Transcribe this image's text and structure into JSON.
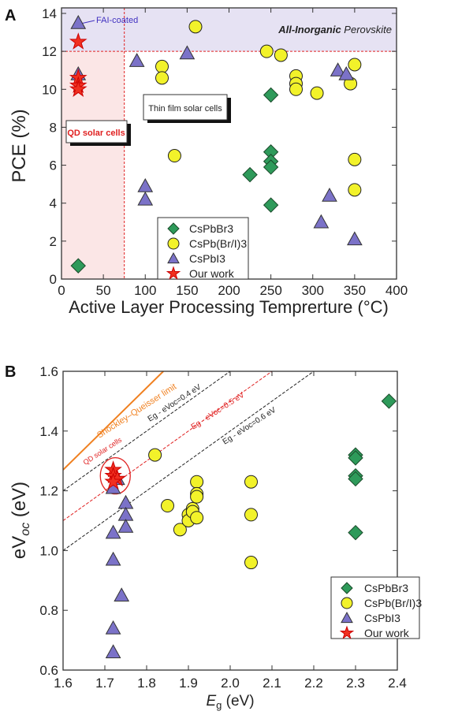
{
  "chart_data": [
    {
      "panel": "A",
      "type": "scatter",
      "xlabel": "Active Layer Processing Temprerture (°C)",
      "ylabel": "PCE (%)",
      "xlim": [
        0,
        400
      ],
      "ylim": [
        0,
        14.4
      ],
      "xticks": [
        0,
        50,
        100,
        150,
        200,
        250,
        300,
        350,
        400
      ],
      "yticks": [
        0,
        2,
        4,
        6,
        8,
        10,
        12,
        14
      ],
      "grid": false,
      "legend_position": "bottom-center",
      "annotations": {
        "fai": "FAI-coated",
        "inorganic_bold": "All-Inorganic",
        "inorganic_italic": "Perovskite",
        "thin": "Thin film solar cells",
        "qd": "QD solar cells"
      },
      "reference_lines": {
        "x": 75,
        "y": 12
      },
      "series": [
        {
          "name": "CsPbBr3",
          "marker": "diamond",
          "color": "#2e9a5a",
          "points": [
            [
              20,
              0.7
            ],
            [
              225,
              5.5
            ],
            [
              250,
              9.7
            ],
            [
              250,
              6.7
            ],
            [
              250,
              6.2
            ],
            [
              250,
              5.9
            ],
            [
              250,
              3.9
            ]
          ]
        },
        {
          "name": "CsPb(Br/I)3",
          "marker": "circle",
          "color": "#f2f22a",
          "points": [
            [
              160,
              13.3
            ],
            [
              245,
              12
            ],
            [
              262,
              11.8
            ],
            [
              120,
              11.2
            ],
            [
              120,
              10.6
            ],
            [
              280,
              10.7
            ],
            [
              280,
              10.3
            ],
            [
              280,
              10.0
            ],
            [
              305,
              9.8
            ],
            [
              350,
              11.3
            ],
            [
              345,
              10.3
            ],
            [
              135,
              6.5
            ],
            [
              350,
              6.3
            ],
            [
              350,
              4.7
            ]
          ]
        },
        {
          "name": "CsPbI3",
          "marker": "triangle",
          "color": "#7b72c8",
          "points": [
            [
              20,
              13.5
            ],
            [
              20,
              10.8
            ],
            [
              90,
              11.5
            ],
            [
              150,
              11.9
            ],
            [
              330,
              11.0
            ],
            [
              340,
              10.8
            ],
            [
              100,
              4.9
            ],
            [
              100,
              4.2
            ],
            [
              320,
              4.4
            ],
            [
              310,
              3.0
            ],
            [
              350,
              2.1
            ]
          ]
        },
        {
          "name": "Our work",
          "marker": "star",
          "color": "#f03020",
          "points": [
            [
              20,
              12.5
            ],
            [
              20,
              10.6
            ],
            [
              20,
              10.2
            ],
            [
              20,
              10.0
            ]
          ]
        }
      ]
    },
    {
      "panel": "B",
      "type": "scatter",
      "xlabel_main": "E",
      "xlabel_sub": "g",
      "xlabel_unit": " (eV)",
      "ylabel_main": "eV",
      "ylabel_sub": "oc",
      "ylabel_unit": " (eV)",
      "xlim": [
        1.6,
        2.4
      ],
      "ylim": [
        0.6,
        1.6
      ],
      "xticks": [
        1.6,
        1.7,
        1.8,
        1.9,
        2.0,
        2.1,
        2.2,
        2.3,
        2.4
      ],
      "yticks": [
        0.6,
        0.8,
        1.0,
        1.2,
        1.4,
        1.6
      ],
      "grid": false,
      "legend_position": "bottom-right",
      "annotations": {
        "sq": "Shockley–Queisser limit",
        "l04": "Eg - eVoc=0.4 eV",
        "l05": "Eg - eVoc=0.5 eV",
        "l06": "Eg - eVoc=0.6 eV",
        "qd": "QD solar cells"
      },
      "loss_lines_eV": [
        0.4,
        0.5,
        0.6
      ],
      "sq_limit": [
        [
          1.6,
          1.27
        ],
        [
          1.84,
          1.6
        ]
      ],
      "series": [
        {
          "name": "CsPbBr3",
          "marker": "diamond",
          "color": "#2e9a5a",
          "points": [
            [
              2.38,
              1.5
            ],
            [
              2.3,
              1.32
            ],
            [
              2.3,
              1.31
            ],
            [
              2.3,
              1.25
            ],
            [
              2.3,
              1.24
            ],
            [
              2.3,
              1.06
            ]
          ]
        },
        {
          "name": "CsPb(Br/I)3",
          "marker": "circle",
          "color": "#f2f22a",
          "points": [
            [
              1.82,
              1.32
            ],
            [
              1.85,
              1.15
            ],
            [
              1.88,
              1.07
            ],
            [
              1.9,
              1.12
            ],
            [
              1.9,
              1.1
            ],
            [
              1.91,
              1.14
            ],
            [
              1.91,
              1.13
            ],
            [
              1.92,
              1.23
            ],
            [
              1.92,
              1.19
            ],
            [
              1.92,
              1.18
            ],
            [
              1.92,
              1.11
            ],
            [
              2.05,
              1.23
            ],
            [
              2.05,
              1.12
            ],
            [
              2.05,
              0.96
            ]
          ]
        },
        {
          "name": "CsPbI3",
          "marker": "triangle",
          "color": "#7b72c8",
          "points": [
            [
              1.73,
              1.24
            ],
            [
              1.72,
              1.21
            ],
            [
              1.75,
              1.16
            ],
            [
              1.75,
              1.12
            ],
            [
              1.75,
              1.08
            ],
            [
              1.72,
              1.06
            ],
            [
              1.72,
              0.97
            ],
            [
              1.74,
              0.85
            ],
            [
              1.72,
              0.74
            ],
            [
              1.72,
              0.66
            ]
          ]
        },
        {
          "name": "Our work",
          "marker": "star",
          "color": "#f03020",
          "points": [
            [
              1.72,
              1.27
            ],
            [
              1.72,
              1.25
            ],
            [
              1.73,
              1.24
            ],
            [
              1.72,
              1.23
            ]
          ]
        }
      ]
    }
  ],
  "panel_labels": [
    "A",
    "B"
  ]
}
